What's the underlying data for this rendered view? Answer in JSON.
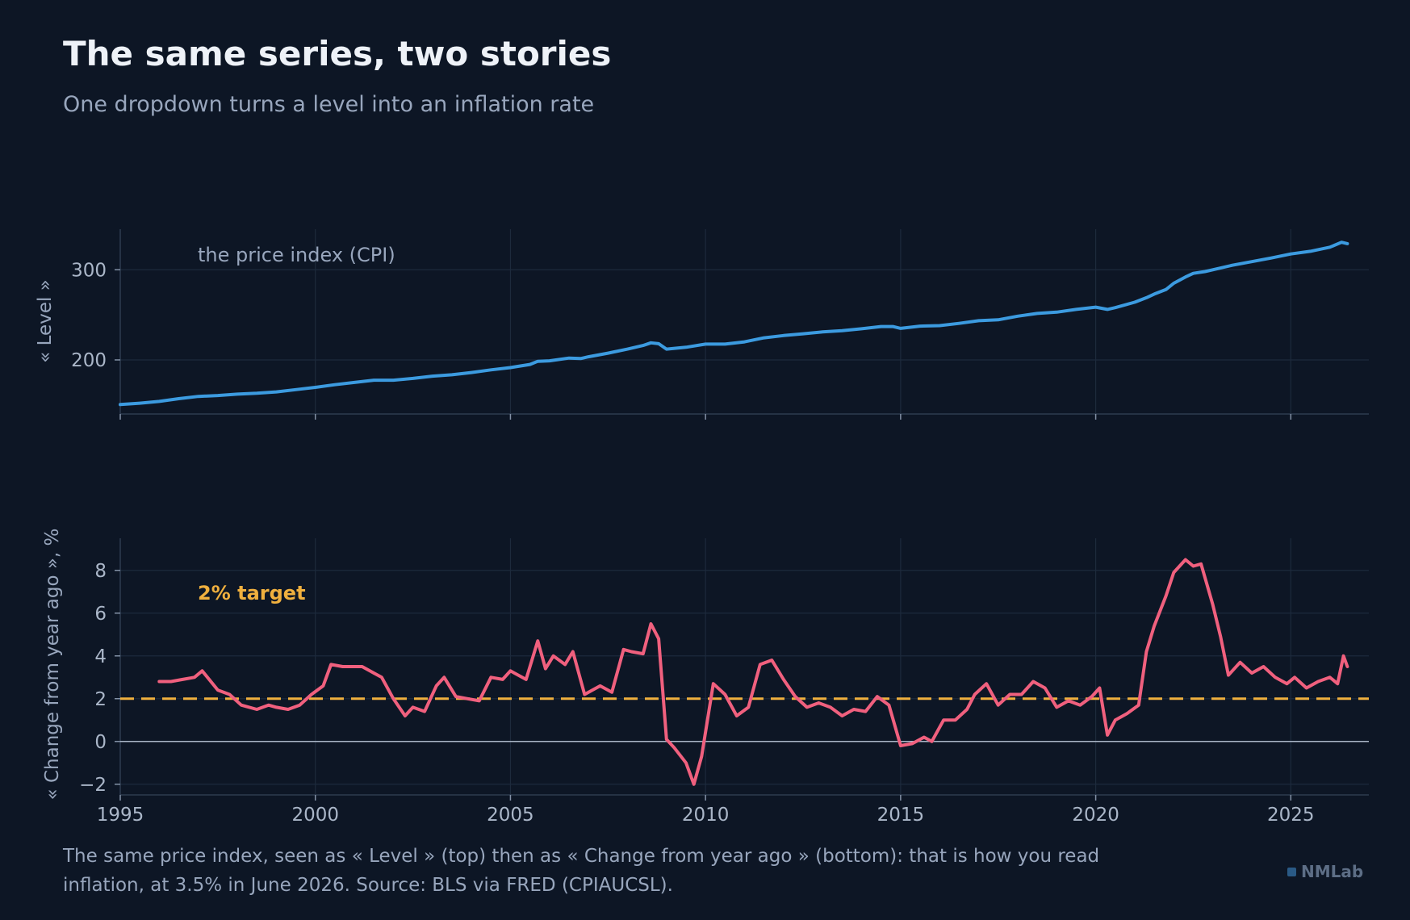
{
  "header": {
    "title": "The same series, two stories",
    "subtitle": "One dropdown turns a level into an inflation rate"
  },
  "caption": "The same price index, seen as « Level » (top) then as « Change from year ago » (bottom): that is how you read inflation, at 3.5% in June 2026. Source: BLS via FRED (CPIAUCSL).",
  "brand": "NMLab",
  "colors": {
    "background": "#0d1625",
    "level_line": "#3c9be0",
    "change_line": "#f0607e",
    "target_line": "#f0b03e",
    "grid": "#1d2a3c",
    "zero_line": "#aab6c8"
  },
  "chart_data": [
    {
      "type": "line",
      "panel": "top",
      "ylabel": "« Level »",
      "annotation": "the price index (CPI)",
      "xlim": [
        1995,
        2027
      ],
      "ylim": [
        140,
        345
      ],
      "xticks": [
        1995,
        2000,
        2005,
        2010,
        2015,
        2020,
        2025
      ],
      "xtick_labels_visible": false,
      "yticks": [
        200,
        300
      ],
      "grid": true,
      "series": [
        {
          "color": "#3c9be0",
          "x": [
            1995.0,
            1995.5,
            1996.0,
            1996.5,
            1997.0,
            1997.5,
            1998.0,
            1998.5,
            1999.0,
            1999.5,
            2000.0,
            2000.5,
            2001.0,
            2001.5,
            2002.0,
            2002.5,
            2003.0,
            2003.5,
            2004.0,
            2004.5,
            2005.0,
            2005.5,
            2005.7,
            2006.0,
            2006.5,
            2006.8,
            2007.0,
            2007.5,
            2008.0,
            2008.4,
            2008.6,
            2008.8,
            2009.0,
            2009.5,
            2010.0,
            2010.5,
            2011.0,
            2011.5,
            2012.0,
            2012.5,
            2013.0,
            2013.5,
            2014.0,
            2014.5,
            2014.8,
            2015.0,
            2015.5,
            2016.0,
            2016.5,
            2017.0,
            2017.5,
            2018.0,
            2018.5,
            2019.0,
            2019.5,
            2020.0,
            2020.3,
            2020.5,
            2021.0,
            2021.3,
            2021.5,
            2021.8,
            2022.0,
            2022.3,
            2022.5,
            2022.8,
            2023.0,
            2023.5,
            2024.0,
            2024.5,
            2025.0,
            2025.5,
            2026.0,
            2026.3,
            2026.45
          ],
          "y": [
            150.5,
            152.0,
            154.0,
            157.0,
            159.5,
            160.5,
            162.0,
            163.0,
            164.5,
            167.0,
            169.5,
            172.5,
            175.0,
            177.5,
            177.5,
            179.5,
            182.0,
            183.5,
            186.0,
            189.0,
            191.5,
            195.0,
            198.5,
            199.0,
            202.0,
            201.5,
            203.5,
            207.5,
            212.0,
            216.0,
            219.0,
            218.0,
            212.0,
            214.0,
            217.5,
            217.5,
            220.0,
            224.5,
            227.0,
            229.0,
            231.0,
            232.5,
            234.5,
            237.0,
            237.0,
            235.0,
            237.5,
            238.0,
            240.5,
            243.5,
            244.5,
            248.5,
            251.5,
            253.0,
            256.0,
            258.5,
            256.0,
            258.0,
            264.0,
            269.0,
            273.0,
            278.0,
            285.0,
            292.0,
            296.0,
            298.0,
            300.0,
            305.0,
            309.0,
            313.0,
            317.5,
            320.5,
            325.0,
            330.5,
            329.0
          ]
        }
      ]
    },
    {
      "type": "line",
      "panel": "bottom",
      "ylabel": "« Change from year ago », %",
      "annotation": "2% target",
      "xlim": [
        1995,
        2027
      ],
      "ylim": [
        -2.5,
        9.5
      ],
      "xticks": [
        1995,
        2000,
        2005,
        2010,
        2015,
        2020,
        2025
      ],
      "yticks": [
        -2,
        0,
        2,
        4,
        6,
        8
      ],
      "grid": true,
      "reference_lines": [
        {
          "y": 2,
          "style": "dashed",
          "color": "#f0b03e"
        },
        {
          "y": 0,
          "style": "solid",
          "color": "#aab6c8"
        }
      ],
      "series": [
        {
          "color": "#f0607e",
          "x": [
            1996.0,
            1996.3,
            1996.6,
            1996.9,
            1997.1,
            1997.5,
            1997.8,
            1998.1,
            1998.5,
            1998.8,
            1999.0,
            1999.3,
            1999.6,
            1999.9,
            2000.2,
            2000.4,
            2000.7,
            2000.9,
            2001.2,
            2001.5,
            2001.7,
            2002.0,
            2002.3,
            2002.5,
            2002.8,
            2003.1,
            2003.3,
            2003.6,
            2003.9,
            2004.2,
            2004.5,
            2004.8,
            2005.0,
            2005.4,
            2005.7,
            2005.9,
            2006.1,
            2006.4,
            2006.6,
            2006.9,
            2007.1,
            2007.3,
            2007.6,
            2007.9,
            2008.1,
            2008.4,
            2008.6,
            2008.8,
            2009.0,
            2009.2,
            2009.5,
            2009.7,
            2009.9,
            2010.2,
            2010.5,
            2010.8,
            2011.1,
            2011.4,
            2011.7,
            2012.0,
            2012.3,
            2012.6,
            2012.9,
            2013.2,
            2013.5,
            2013.8,
            2014.1,
            2014.4,
            2014.7,
            2015.0,
            2015.3,
            2015.6,
            2015.8,
            2016.1,
            2016.4,
            2016.7,
            2016.9,
            2017.2,
            2017.5,
            2017.8,
            2018.1,
            2018.4,
            2018.7,
            2019.0,
            2019.3,
            2019.6,
            2019.9,
            2020.1,
            2020.3,
            2020.5,
            2020.8,
            2021.1,
            2021.3,
            2021.5,
            2021.8,
            2022.0,
            2022.3,
            2022.5,
            2022.7,
            2023.0,
            2023.2,
            2023.4,
            2023.7,
            2024.0,
            2024.3,
            2024.6,
            2024.9,
            2025.1,
            2025.4,
            2025.7,
            2026.0,
            2026.2,
            2026.35,
            2026.45
          ],
          "y": [
            2.8,
            2.8,
            2.9,
            3.0,
            3.3,
            2.4,
            2.2,
            1.7,
            1.5,
            1.7,
            1.6,
            1.5,
            1.7,
            2.2,
            2.6,
            3.6,
            3.5,
            3.5,
            3.5,
            3.2,
            3.0,
            2.0,
            1.2,
            1.6,
            1.4,
            2.6,
            3.0,
            2.1,
            2.0,
            1.9,
            3.0,
            2.9,
            3.3,
            2.9,
            4.7,
            3.4,
            4.0,
            3.6,
            4.2,
            2.2,
            2.4,
            2.6,
            2.3,
            4.3,
            4.2,
            4.1,
            5.5,
            4.8,
            0.1,
            -0.3,
            -1.0,
            -2.0,
            -0.7,
            2.7,
            2.2,
            1.2,
            1.6,
            3.6,
            3.8,
            2.9,
            2.1,
            1.6,
            1.8,
            1.6,
            1.2,
            1.5,
            1.4,
            2.1,
            1.7,
            -0.2,
            -0.1,
            0.2,
            0.0,
            1.0,
            1.0,
            1.5,
            2.2,
            2.7,
            1.7,
            2.2,
            2.2,
            2.8,
            2.5,
            1.6,
            1.9,
            1.7,
            2.1,
            2.5,
            0.3,
            1.0,
            1.3,
            1.7,
            4.2,
            5.4,
            6.8,
            7.9,
            8.5,
            8.2,
            8.3,
            6.4,
            4.9,
            3.1,
            3.7,
            3.2,
            3.5,
            3.0,
            2.7,
            3.0,
            2.5,
            2.8,
            3.0,
            2.7,
            4.0,
            3.5
          ]
        }
      ]
    }
  ]
}
